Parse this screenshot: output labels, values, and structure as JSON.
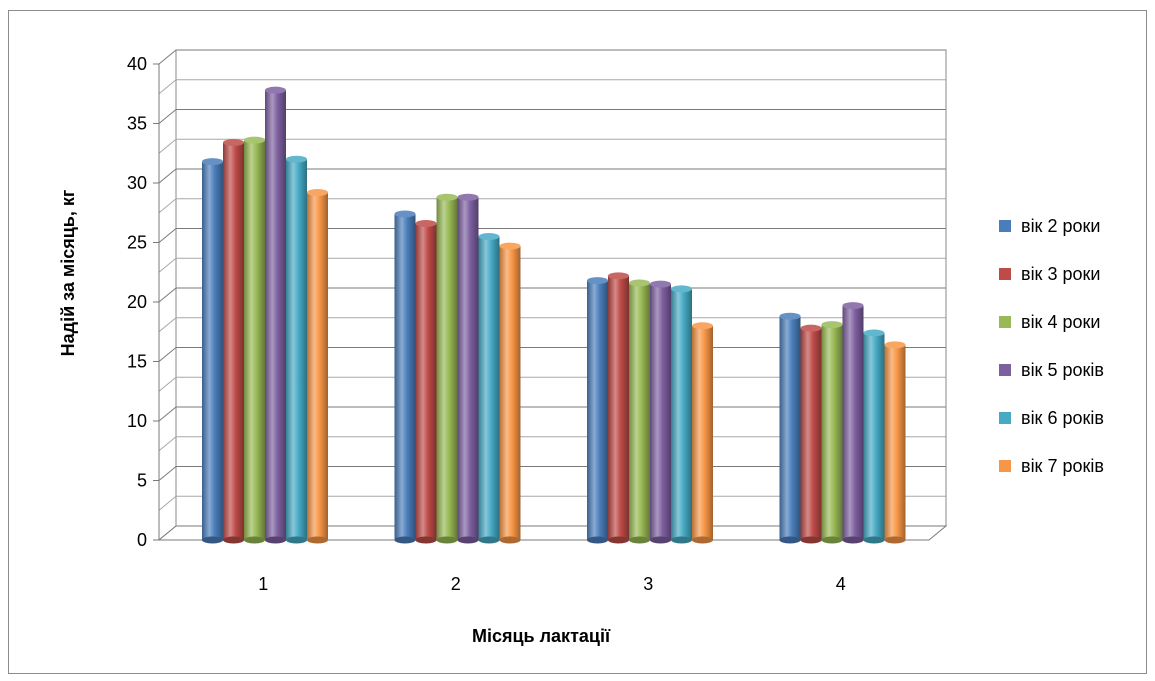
{
  "chart_data": {
    "type": "bar",
    "title": "",
    "xlabel": "Місяць лактації",
    "ylabel": "Надій за місяць, кг",
    "categories": [
      "1",
      "2",
      "3",
      "4"
    ],
    "ylim": [
      0,
      40
    ],
    "yticks": [
      0,
      5,
      10,
      15,
      20,
      25,
      30,
      35,
      40
    ],
    "grid": true,
    "legend_position": "right",
    "series": [
      {
        "name": "вік 2 роки",
        "color": "#4a7ebb",
        "values": [
          31.8,
          27.4,
          21.8,
          18.8
        ]
      },
      {
        "name": "вік 3 роки",
        "color": "#be4b48",
        "values": [
          33.4,
          26.6,
          22.2,
          17.8
        ]
      },
      {
        "name": "вік 4 роки",
        "color": "#98b954",
        "values": [
          33.6,
          28.8,
          21.6,
          18.1
        ]
      },
      {
        "name": "вік 5 років",
        "color": "#7d60a0",
        "values": [
          37.8,
          28.8,
          21.5,
          19.7
        ]
      },
      {
        "name": "вік 6 років",
        "color": "#46aac5",
        "values": [
          32.0,
          25.5,
          21.1,
          17.4
        ]
      },
      {
        "name": "вік 7 років",
        "color": "#f79646",
        "values": [
          29.2,
          24.7,
          18.0,
          16.4
        ]
      }
    ]
  }
}
